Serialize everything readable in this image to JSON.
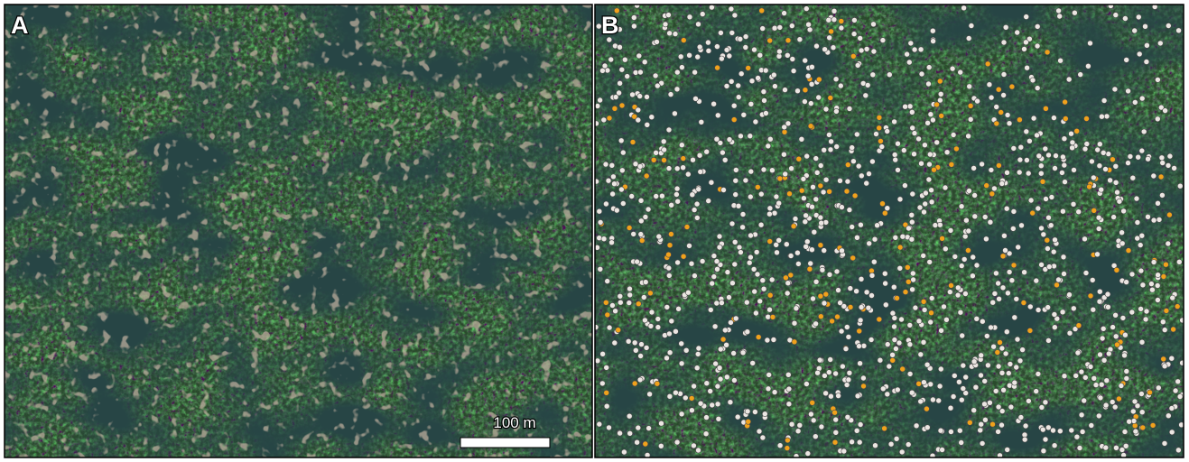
{
  "panels": [
    {
      "label": "A"
    },
    {
      "label": "B"
    }
  ],
  "scale_bar": {
    "label": "100 m"
  }
}
